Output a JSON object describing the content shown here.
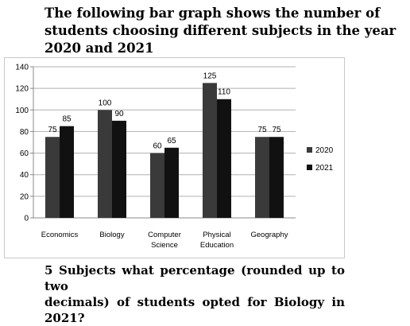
{
  "header": {
    "line1": "The following bar graph shows the number of",
    "line2": "students choosing different subjects in the year",
    "line3": "2020 and 2021"
  },
  "question": {
    "line1": "5 Subjects what percentage (rounded up to two",
    "line2": "decimals) of students opted for Biology in 2021?"
  },
  "chart_data": {
    "type": "bar",
    "categories": [
      [
        "Economics"
      ],
      [
        "Biology"
      ],
      [
        "Computer",
        "Science"
      ],
      [
        "Physical",
        "Education"
      ],
      [
        "Geography"
      ]
    ],
    "series": [
      {
        "name": "2020",
        "values": [
          75,
          100,
          60,
          125,
          75
        ],
        "color": "#3a3a3a"
      },
      {
        "name": "2021",
        "values": [
          85,
          90,
          65,
          110,
          75
        ],
        "color": "#111111"
      }
    ],
    "ylim": [
      0,
      140
    ],
    "yticks": [
      0,
      20,
      40,
      60,
      80,
      100,
      120,
      140
    ],
    "grid": true,
    "legend": "right",
    "xlabel": "",
    "ylabel": ""
  }
}
